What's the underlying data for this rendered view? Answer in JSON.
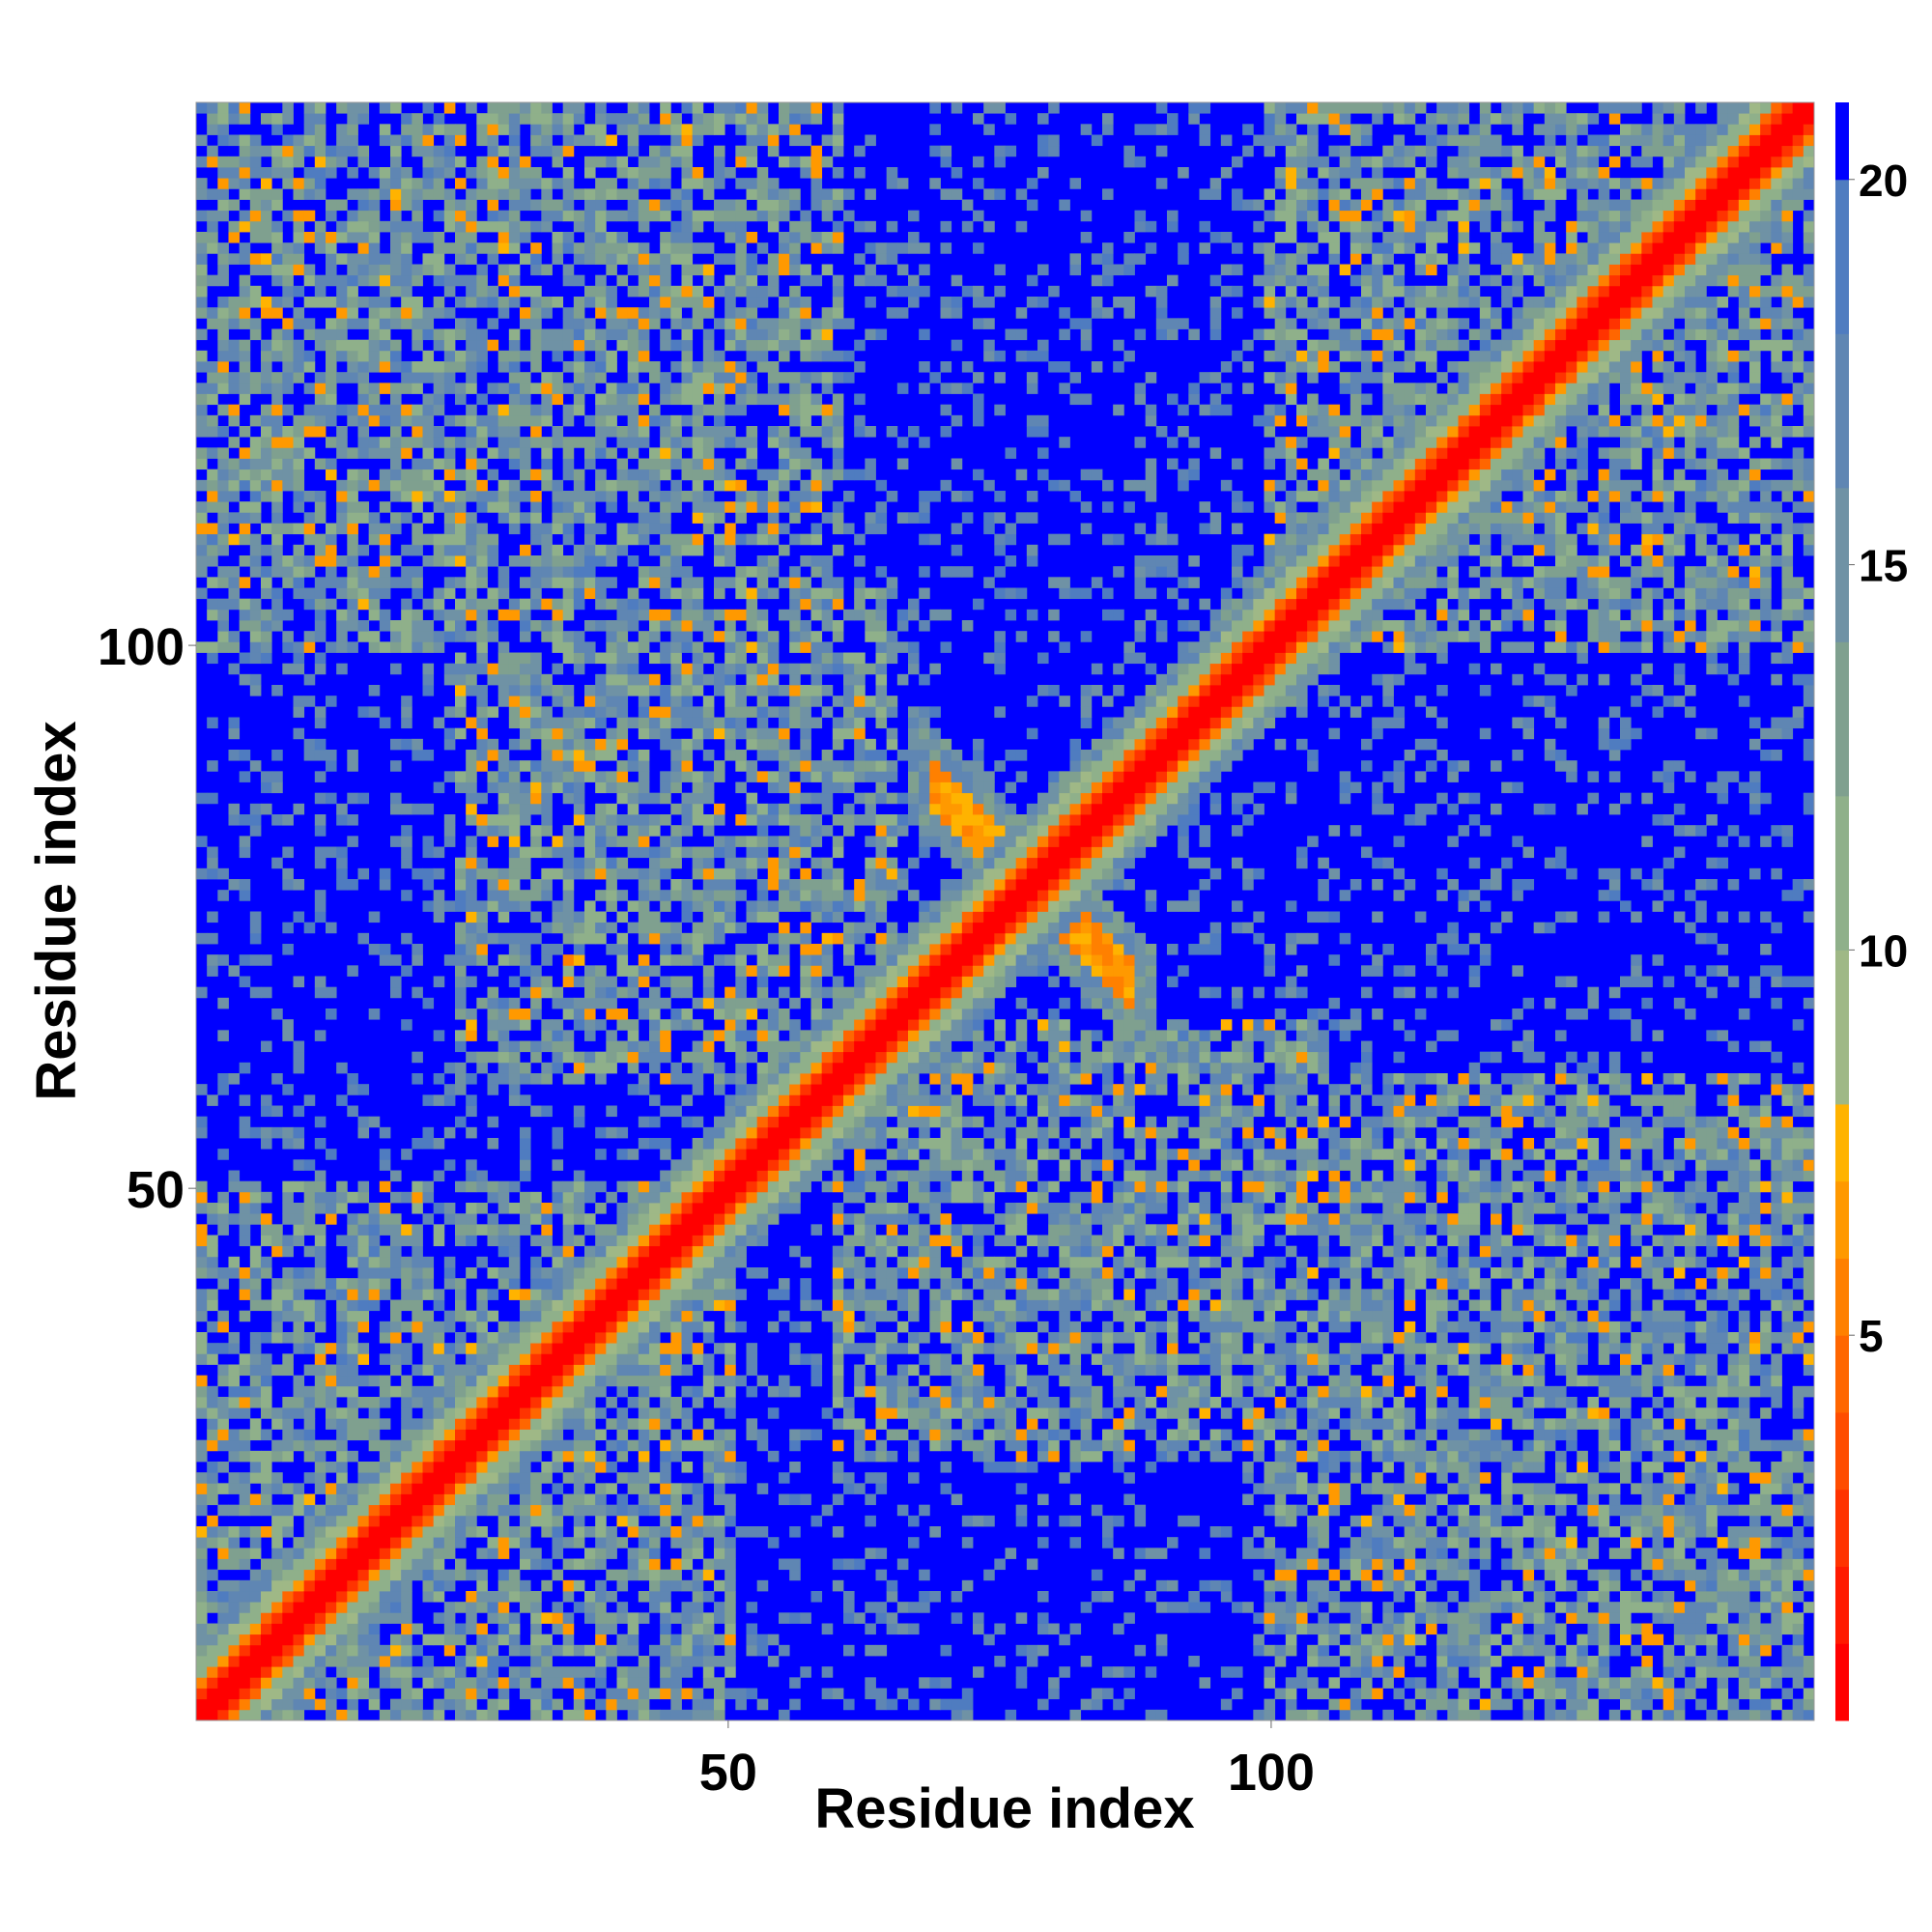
{
  "chart_data": {
    "type": "heatmap",
    "title": "",
    "xlabel": "Residue index",
    "ylabel": "Residue index",
    "n_residues": 150,
    "xlim": [
      1,
      150
    ],
    "ylim": [
      1,
      150
    ],
    "x_ticks": [
      50,
      100
    ],
    "y_ticks": [
      50,
      100
    ],
    "x_tick_labels": [
      "50",
      "100"
    ],
    "y_tick_labels": [
      "50",
      "100"
    ],
    "colorbar": {
      "range": [
        0,
        21
      ],
      "ticks": [
        5,
        10,
        15,
        20
      ],
      "tick_labels": [
        "5",
        "10",
        "15",
        "20"
      ],
      "levels": [
        {
          "max": 1,
          "color": "#ff0000"
        },
        {
          "max": 2,
          "color": "#ff1a00"
        },
        {
          "max": 3,
          "color": "#ff3300"
        },
        {
          "max": 4,
          "color": "#ff4d00"
        },
        {
          "max": 5,
          "color": "#ff6600"
        },
        {
          "max": 6,
          "color": "#ff8000"
        },
        {
          "max": 7,
          "color": "#ff9900"
        },
        {
          "max": 8,
          "color": "#ffb300"
        },
        {
          "max": 10,
          "color": "#9fb886"
        },
        {
          "max": 12,
          "color": "#8fb08a"
        },
        {
          "max": 14,
          "color": "#7fa08f"
        },
        {
          "max": 16,
          "color": "#6f92a5"
        },
        {
          "max": 18,
          "color": "#5f86b3"
        },
        {
          "max": 20,
          "color": "#4f7cc0"
        },
        {
          "max": 21,
          "color": "#0000ff"
        }
      ]
    },
    "structure": {
      "description_units": "residue index",
      "diagonal_band_width": 6,
      "cross_center": 78,
      "domains": [
        {
          "x": [
            1,
            50
          ],
          "y": [
            1,
            50
          ]
        },
        {
          "x": [
            100,
            150
          ],
          "y": [
            100,
            150
          ]
        },
        {
          "x": [
            1,
            60
          ],
          "y": [
            100,
            150
          ]
        },
        {
          "x": [
            100,
            150
          ],
          "y": [
            1,
            60
          ]
        },
        {
          "x": [
            25,
            65
          ],
          "y": [
            60,
            105
          ]
        },
        {
          "x": [
            60,
            105
          ],
          "y": [
            25,
            65
          ]
        }
      ]
    }
  }
}
